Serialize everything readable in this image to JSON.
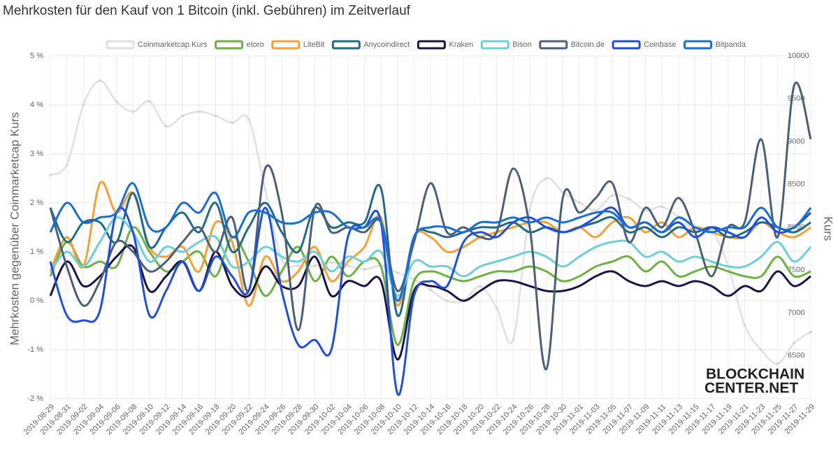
{
  "chart_data": {
    "type": "line",
    "title": "Mehrkosten für den Kauf von 1 Bitcoin (inkl. Gebühren) im Zeitverlauf",
    "y_label": "Mehrkosten gegenüber Coinmarketcap Kurs",
    "y2_label": "Kurs",
    "watermark": [
      "BLOCKCHAIN",
      "CENTER.NET"
    ],
    "grid": true,
    "legend": "top",
    "categories": [
      "2019-08-29",
      "2019-08-31",
      "2019-09-02",
      "2019-09-04",
      "2019-09-06",
      "2019-09-08",
      "2019-09-10",
      "2019-09-12",
      "2019-09-14",
      "2019-09-16",
      "2019-09-18",
      "2019-09-20",
      "2019-09-22",
      "2019-09-24",
      "2019-09-26",
      "2019-09-28",
      "2019-09-30",
      "2019-10-02",
      "2019-10-04",
      "2019-10-06",
      "2019-10-08",
      "2019-10-10",
      "2019-10-12",
      "2019-10-14",
      "2019-10-16",
      "2019-10-18",
      "2019-10-20",
      "2019-10-22",
      "2019-10-24",
      "2019-10-26",
      "2019-10-28",
      "2019-10-30",
      "2019-11-01",
      "2019-11-03",
      "2019-11-05",
      "2019-11-07",
      "2019-11-09",
      "2019-11-11",
      "2019-11-13",
      "2019-11-15",
      "2019-11-17",
      "2019-11-19",
      "2019-11-21",
      "2019-11-23",
      "2019-11-25",
      "2019-11-27",
      "2019-11-29"
    ],
    "ylim": [
      -2,
      5
    ],
    "yticks": [
      {
        "value": -2,
        "label": "-2 %"
      },
      {
        "value": -1,
        "label": "-1 %"
      },
      {
        "value": 0,
        "label": "0 %"
      },
      {
        "value": 1,
        "label": "1 %"
      },
      {
        "value": 2,
        "label": "2 %"
      },
      {
        "value": 3,
        "label": "3 %"
      },
      {
        "value": 4,
        "label": "4 %"
      },
      {
        "value": 5,
        "label": "5 %"
      }
    ],
    "y2lim": [
      6000,
      10000
    ],
    "y2ticks": [
      6500,
      7000,
      7500,
      8000,
      8500,
      9000,
      9500,
      10000
    ],
    "series": [
      {
        "name": "Coinmarketcap Kurs",
        "color": "#e0e0e0",
        "axis": "y2",
        "values": [
          8610,
          8730,
          9430,
          9710,
          9470,
          9350,
          9470,
          9180,
          9300,
          9350,
          9300,
          9220,
          9260,
          8440,
          7630,
          7550,
          7550,
          7590,
          7550,
          7510,
          7550,
          7470,
          7390,
          7270,
          7140,
          7140,
          7310,
          7060,
          6690,
          8200,
          8570,
          8410,
          8290,
          8200,
          8370,
          8330,
          8200,
          8240,
          8120,
          7960,
          7960,
          7550,
          6860,
          6570,
          6410,
          6650,
          6780
        ]
      },
      {
        "name": "etoro",
        "color": "#6db33f",
        "values": [
          0.5,
          1.2,
          0.7,
          0.8,
          0.7,
          1.5,
          1.0,
          0.6,
          0.8,
          1.0,
          0.5,
          1.3,
          0.8,
          0.1,
          0.6,
          1.1,
          0.4,
          0.9,
          0.5,
          0.8,
          0.7,
          -0.9,
          0.4,
          0.6,
          0.5,
          0.4,
          0.5,
          0.6,
          0.6,
          0.7,
          0.6,
          0.4,
          0.5,
          0.7,
          0.8,
          0.9,
          0.6,
          0.8,
          0.5,
          0.6,
          0.7,
          0.6,
          0.5,
          0.5,
          0.9,
          0.5,
          0.6
        ]
      },
      {
        "name": "LiteBit",
        "color": "#f7a035",
        "values": [
          0.6,
          1.3,
          0.7,
          2.4,
          1.8,
          2.2,
          1.1,
          0.9,
          1.1,
          0.6,
          1.6,
          1.2,
          -0.1,
          0.9,
          0.4,
          0.6,
          1.1,
          0.4,
          0.8,
          1.1,
          1.7,
          -0.1,
          1.3,
          1.3,
          1.0,
          1.1,
          1.3,
          1.4,
          1.5,
          1.6,
          1.6,
          1.4,
          1.5,
          1.3,
          1.6,
          1.7,
          1.4,
          1.6,
          1.3,
          1.5,
          1.4,
          1.3,
          1.3,
          1.6,
          1.4,
          1.3,
          1.5
        ]
      },
      {
        "name": "Anycoindirect",
        "color": "#1f6b8a",
        "values": [
          1.9,
          1.2,
          1.6,
          1.6,
          1.2,
          2.2,
          1.1,
          1.5,
          1.8,
          1.4,
          2.0,
          1.0,
          1.5,
          2.0,
          1.4,
          1.0,
          1.9,
          1.5,
          1.6,
          1.6,
          2.3,
          -0.3,
          1.3,
          1.4,
          1.3,
          1.4,
          1.5,
          1.5,
          1.6,
          1.4,
          1.5,
          1.4,
          1.5,
          1.6,
          1.7,
          1.4,
          1.5,
          1.3,
          1.5,
          1.4,
          1.5,
          1.3,
          1.4,
          1.6,
          1.5,
          1.4,
          1.6
        ]
      },
      {
        "name": "Kraken",
        "color": "#1a1448",
        "values": [
          0.1,
          0.8,
          0.3,
          0.5,
          0.9,
          1.1,
          0.2,
          0.5,
          0.8,
          0.2,
          1.0,
          0.3,
          0.1,
          0.7,
          0.3,
          0.3,
          0.9,
          0.1,
          0.4,
          0.3,
          0.4,
          -1.2,
          0.2,
          0.3,
          0.2,
          0.0,
          0.2,
          0.4,
          0.4,
          0.3,
          0.2,
          0.2,
          0.3,
          0.5,
          0.6,
          0.4,
          0.3,
          0.4,
          0.3,
          0.4,
          0.3,
          0.1,
          0.3,
          0.2,
          0.6,
          0.3,
          0.5
        ]
      },
      {
        "name": "Bison",
        "color": "#6cd0d8",
        "values": [
          0.6,
          1.0,
          0.7,
          1.2,
          1.7,
          1.4,
          0.8,
          1.1,
          1.0,
          1.2,
          1.3,
          0.7,
          0.8,
          1.1,
          0.9,
          0.8,
          1.0,
          0.6,
          0.9,
          0.8,
          1.0,
          0.1,
          0.8,
          0.7,
          0.7,
          0.5,
          0.7,
          0.8,
          0.9,
          1.0,
          0.9,
          0.7,
          0.9,
          1.1,
          1.2,
          1.2,
          0.9,
          1.0,
          0.8,
          0.9,
          0.8,
          0.7,
          0.7,
          0.9,
          1.2,
          0.8,
          1.1
        ]
      },
      {
        "name": "Bitcoin.de",
        "color": "#4a5f7a",
        "values": [
          1.9,
          0.7,
          -0.1,
          0.4,
          1.2,
          1.0,
          0.6,
          0.8,
          1.2,
          1.5,
          1.0,
          1.7,
          0.2,
          2.7,
          1.8,
          -0.6,
          1.9,
          1.4,
          1.5,
          1.4,
          1.6,
          0.2,
          1.2,
          2.4,
          1.4,
          1.5,
          1.3,
          1.4,
          2.7,
          1.5,
          -1.4,
          2.1,
          1.8,
          2.1,
          2.4,
          1.2,
          1.9,
          1.5,
          2.1,
          1.4,
          0.5,
          1.5,
          1.6,
          3.3,
          1.3,
          4.4,
          3.3
        ]
      },
      {
        "name": "Coinbase",
        "color": "#1f4fe0",
        "values": [
          0.8,
          -0.3,
          -0.4,
          -0.2,
          1.8,
          1.4,
          -0.3,
          0.2,
          0.8,
          0.2,
          0.9,
          0.5,
          0.2,
          1.9,
          0.2,
          -0.9,
          -0.8,
          -1.0,
          1.3,
          1.5,
          1.6,
          -1.9,
          0.1,
          0.4,
          0.3,
          1.2,
          1.4,
          1.3,
          1.6,
          1.7,
          1.5,
          1.4,
          1.5,
          1.7,
          1.9,
          1.5,
          1.6,
          1.4,
          1.6,
          1.3,
          1.5,
          1.4,
          1.3,
          1.7,
          1.4,
          1.5,
          1.8
        ]
      },
      {
        "name": "Bitpanda",
        "color": "#1a6fd6",
        "values": [
          1.4,
          2.0,
          1.6,
          1.7,
          1.8,
          2.4,
          1.5,
          1.5,
          2.0,
          1.8,
          2.2,
          1.3,
          1.8,
          1.8,
          1.6,
          1.6,
          1.8,
          1.8,
          1.5,
          1.5,
          1.6,
          0.0,
          1.3,
          1.5,
          1.5,
          1.4,
          1.6,
          1.6,
          1.7,
          1.6,
          1.7,
          1.6,
          1.7,
          1.8,
          1.8,
          1.5,
          1.6,
          1.4,
          1.7,
          1.5,
          1.4,
          1.5,
          1.5,
          1.9,
          1.5,
          1.5,
          1.9
        ]
      }
    ]
  }
}
